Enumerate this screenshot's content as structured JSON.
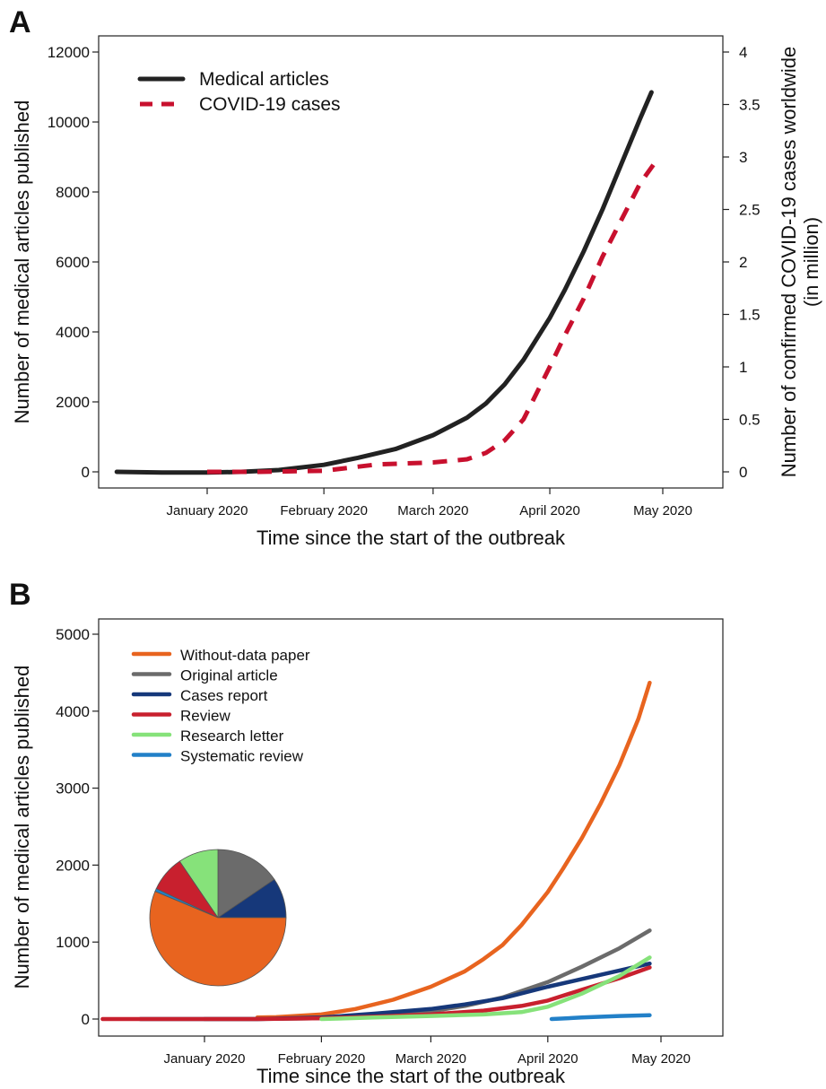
{
  "chart_data": [
    {
      "panel": "A",
      "type": "line",
      "xlabel": "Time since the start of the outbreak",
      "ylabel": "Number of medical articles published",
      "y2label": [
        "Number of confirmed COVID-19 cases worldwide",
        "(in million)"
      ],
      "x_ticks": [
        "January 2020",
        "February 2020",
        "March 2020",
        "April 2020",
        "May 2020"
      ],
      "y_ticks": [
        0,
        2000,
        4000,
        6000,
        8000,
        10000,
        12000
      ],
      "y2_ticks": [
        "0",
        "0.5",
        "1",
        "1.5",
        "2",
        "2.5",
        "3",
        "3.5",
        "4"
      ],
      "ylim": [
        0,
        12000
      ],
      "y2lim": [
        0,
        4
      ],
      "legend_position": "top-left",
      "series": [
        {
          "name": "Medical articles",
          "axis": "left",
          "color": "#222222",
          "style": "solid",
          "x": [
            "2019-12-08",
            "2019-12-20",
            "2020-01-01",
            "2020-01-10",
            "2020-01-20",
            "2020-02-01",
            "2020-02-10",
            "2020-02-20",
            "2020-03-01",
            "2020-03-10",
            "2020-03-15",
            "2020-03-20",
            "2020-03-25",
            "2020-04-01",
            "2020-04-05",
            "2020-04-10",
            "2020-04-15",
            "2020-04-20",
            "2020-04-25",
            "2020-04-28"
          ],
          "y": [
            0,
            -20,
            -20,
            0,
            50,
            200,
            400,
            650,
            1050,
            1550,
            1950,
            2500,
            3200,
            4400,
            5200,
            6300,
            7500,
            8800,
            10100,
            10850
          ]
        },
        {
          "name": "COVID-19 cases",
          "axis": "right",
          "color": "#c8102e",
          "style": "dashed",
          "x": [
            "2020-01-01",
            "2020-01-15",
            "2020-02-01",
            "2020-02-15",
            "2020-03-01",
            "2020-03-10",
            "2020-03-15",
            "2020-03-20",
            "2020-03-25",
            "2020-04-01",
            "2020-04-05",
            "2020-04-10",
            "2020-04-15",
            "2020-04-20",
            "2020-04-25",
            "2020-04-30"
          ],
          "y": [
            0,
            0,
            0.01,
            0.07,
            0.09,
            0.12,
            0.18,
            0.3,
            0.5,
            1.0,
            1.3,
            1.65,
            2.05,
            2.4,
            2.75,
            3.0
          ]
        }
      ]
    },
    {
      "panel": "B",
      "type": "line",
      "xlabel": "Time since the start of the outbreak",
      "ylabel": "Number of medical articles published",
      "x_ticks": [
        "January 2020",
        "February 2020",
        "March 2020",
        "April 2020",
        "May 2020"
      ],
      "y_ticks": [
        0,
        1000,
        2000,
        3000,
        4000,
        5000
      ],
      "ylim": [
        0,
        5000
      ],
      "legend_position": "top-left",
      "series": [
        {
          "name": "Without-data paper",
          "color": "#e8641f",
          "x": [
            "2020-01-15",
            "2020-01-20",
            "2020-02-01",
            "2020-02-10",
            "2020-02-20",
            "2020-03-01",
            "2020-03-10",
            "2020-03-15",
            "2020-03-20",
            "2020-03-25",
            "2020-04-01",
            "2020-04-05",
            "2020-04-10",
            "2020-04-15",
            "2020-04-20",
            "2020-04-25",
            "2020-04-28"
          ],
          "y": [
            20,
            25,
            60,
            130,
            250,
            420,
            620,
            780,
            960,
            1220,
            1650,
            1950,
            2350,
            2800,
            3300,
            3900,
            4370
          ]
        },
        {
          "name": "Original article",
          "color": "#6b6b6b",
          "x": [
            "2020-01-01",
            "2020-01-15",
            "2020-02-01",
            "2020-02-15",
            "2020-03-01",
            "2020-03-10",
            "2020-03-20",
            "2020-04-01",
            "2020-04-10",
            "2020-04-20",
            "2020-04-28"
          ],
          "y": [
            0,
            0,
            10,
            40,
            100,
            170,
            280,
            480,
            680,
            920,
            1150
          ]
        },
        {
          "name": "Cases report",
          "color": "#16387a",
          "x": [
            "2019-12-15",
            "2020-01-01",
            "2020-01-15",
            "2020-02-01",
            "2020-02-15",
            "2020-03-01",
            "2020-03-10",
            "2020-03-20",
            "2020-04-01",
            "2020-04-10",
            "2020-04-20",
            "2020-04-28"
          ],
          "y": [
            0,
            0,
            0,
            20,
            70,
            130,
            190,
            270,
            420,
            520,
            630,
            720
          ]
        },
        {
          "name": "Review",
          "color": "#c8202e",
          "x": [
            "2019-12-05",
            "2019-12-20",
            "2020-01-01",
            "2020-01-15",
            "2020-02-01",
            "2020-02-15",
            "2020-03-01",
            "2020-03-15",
            "2020-03-25",
            "2020-04-01",
            "2020-04-10",
            "2020-04-20",
            "2020-04-28"
          ],
          "y": [
            0,
            0,
            0,
            0,
            10,
            30,
            60,
            110,
            170,
            240,
            380,
            530,
            670
          ]
        },
        {
          "name": "Research letter",
          "color": "#86e27a",
          "x": [
            "2020-02-01",
            "2020-02-15",
            "2020-03-01",
            "2020-03-15",
            "2020-03-25",
            "2020-04-01",
            "2020-04-10",
            "2020-04-20",
            "2020-04-28"
          ],
          "y": [
            0,
            20,
            40,
            60,
            90,
            160,
            330,
            560,
            800
          ]
        },
        {
          "name": "Systematic review",
          "color": "#2280c8",
          "x": [
            "2020-04-02",
            "2020-04-10",
            "2020-04-20",
            "2020-04-28"
          ],
          "y": [
            0,
            20,
            40,
            50
          ]
        }
      ],
      "inset_pie": {
        "type": "pie",
        "slices": [
          {
            "series": "Cases report",
            "value": 9.5,
            "color": "#16387a"
          },
          {
            "series": "Original article",
            "value": 15.5,
            "color": "#6b6b6b"
          },
          {
            "series": "Research letter",
            "value": 9.5,
            "color": "#86e27a"
          },
          {
            "series": "Review",
            "value": 8.5,
            "color": "#c8202e"
          },
          {
            "series": "Systematic review",
            "value": 0.7,
            "color": "#2280c8"
          },
          {
            "series": "Without-data paper",
            "value": 56.3,
            "color": "#e8641f"
          }
        ]
      }
    }
  ]
}
